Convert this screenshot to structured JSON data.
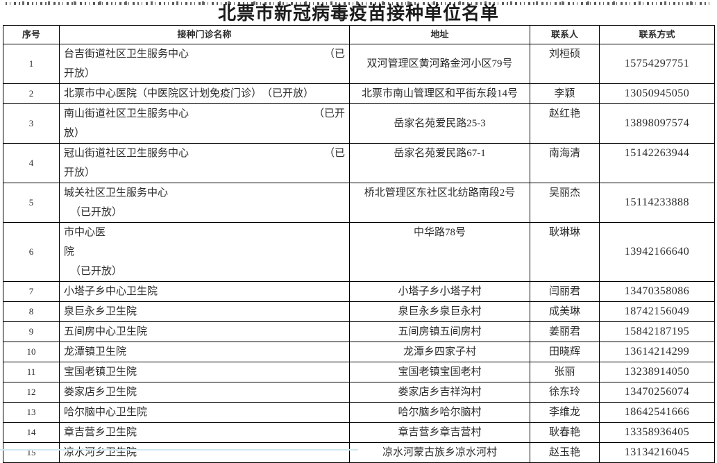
{
  "title": "北票市新冠病毒疫苗接种单位名单",
  "colors": {
    "text": "#2b2b2b",
    "border": "#000000",
    "title": "#1c1c1c"
  },
  "table": {
    "headers": [
      "序号",
      "接种门诊名称",
      "地址",
      "联系人",
      "联系方式"
    ],
    "rows": [
      {
        "no": "1",
        "name_lines": [
          {
            "l": "台吉街道社区卫生服务中心",
            "r": "（已"
          },
          {
            "l": "开放）"
          }
        ],
        "address": "双河管理区黄河路金河小区79号",
        "contact": "刘桓硕",
        "phone": "15754297751"
      },
      {
        "no": "2",
        "name_lines": [
          {
            "l": "北票市中心医院（中医院区计划免疫门诊）　（已开放）"
          }
        ],
        "address": "北票市南山管理区和平街东段14号",
        "contact": "李颖",
        "phone": "13050945050"
      },
      {
        "no": "3",
        "name_lines": [
          {
            "l": "南山街道社区卫生服务中心",
            "r": "（已开"
          },
          {
            "l": "放）"
          }
        ],
        "address": "岳家名苑爱民路25-3",
        "contact": "赵红艳",
        "phone": "13898097574"
      },
      {
        "no": "4",
        "name_lines": [
          {
            "l": "冠山街道社区卫生服务中心",
            "r": "（已"
          },
          {
            "l": "开放）"
          }
        ],
        "address": "岳家名苑爱民路67-1",
        "contact": "南海清",
        "phone": "15142263944",
        "addr_valign": "top",
        "phone_valign": "top"
      },
      {
        "no": "5",
        "name_lines": [
          {
            "l": "城关社区卫生服务中心"
          },
          {
            "l": "（已开放）",
            "indent": true
          }
        ],
        "address": "桥北管理区东社区北纺路南段2号",
        "contact": "吴丽杰",
        "phone": "15114233888",
        "addr_valign": "top"
      },
      {
        "no": "6",
        "name_lines": [
          {
            "l": "市中心医"
          },
          {
            "l": "院"
          },
          {
            "l": "（已开放）",
            "indent": true
          }
        ],
        "address": "中华路78号",
        "contact": "耿琳琳",
        "phone": "13942166640",
        "addr_valign": "top"
      },
      {
        "no": "7",
        "name_lines": [
          {
            "l": "小塔子乡中心卫生院"
          }
        ],
        "address": "小塔子乡小塔子村",
        "contact": "闫丽君",
        "phone": "13470358086"
      },
      {
        "no": "8",
        "name_lines": [
          {
            "l": "泉巨永乡卫生院"
          }
        ],
        "address": "泉巨永乡泉巨永村",
        "contact": "成美琳",
        "phone": "18742156049"
      },
      {
        "no": "9",
        "name_lines": [
          {
            "l": "五间房中心卫生院"
          }
        ],
        "address": "五间房镇五间房村",
        "contact": "姜丽君",
        "phone": "15842187195"
      },
      {
        "no": "10",
        "name_lines": [
          {
            "l": "龙潭镇卫生院"
          }
        ],
        "address": "龙潭乡四家子村",
        "contact": "田晓辉",
        "phone": "13614214299"
      },
      {
        "no": "11",
        "name_lines": [
          {
            "l": "宝国老镇卫生院"
          }
        ],
        "address": "宝国老镇宝国老村",
        "contact": "张丽",
        "phone": "13238914050"
      },
      {
        "no": "12",
        "name_lines": [
          {
            "l": "娄家店乡卫生院"
          }
        ],
        "address": "娄家店乡吉祥沟村",
        "contact": "徐东玲",
        "phone": "13470256074"
      },
      {
        "no": "13",
        "name_lines": [
          {
            "l": "哈尔脑中心卫生院"
          }
        ],
        "address": "哈尔脑乡哈尔脑村",
        "contact": "李维龙",
        "phone": "18642541666"
      },
      {
        "no": "14",
        "name_lines": [
          {
            "l": "章吉营乡卫生院"
          }
        ],
        "address": "章吉营乡章吉营村",
        "contact": "耿春艳",
        "phone": "13358936405"
      },
      {
        "no": "15",
        "name_lines": [
          {
            "l": "凉水河乡卫生院"
          }
        ],
        "address": "凉水河蒙古族乡凉水河村",
        "contact": "赵玉艳",
        "phone": "13134216045"
      }
    ]
  }
}
